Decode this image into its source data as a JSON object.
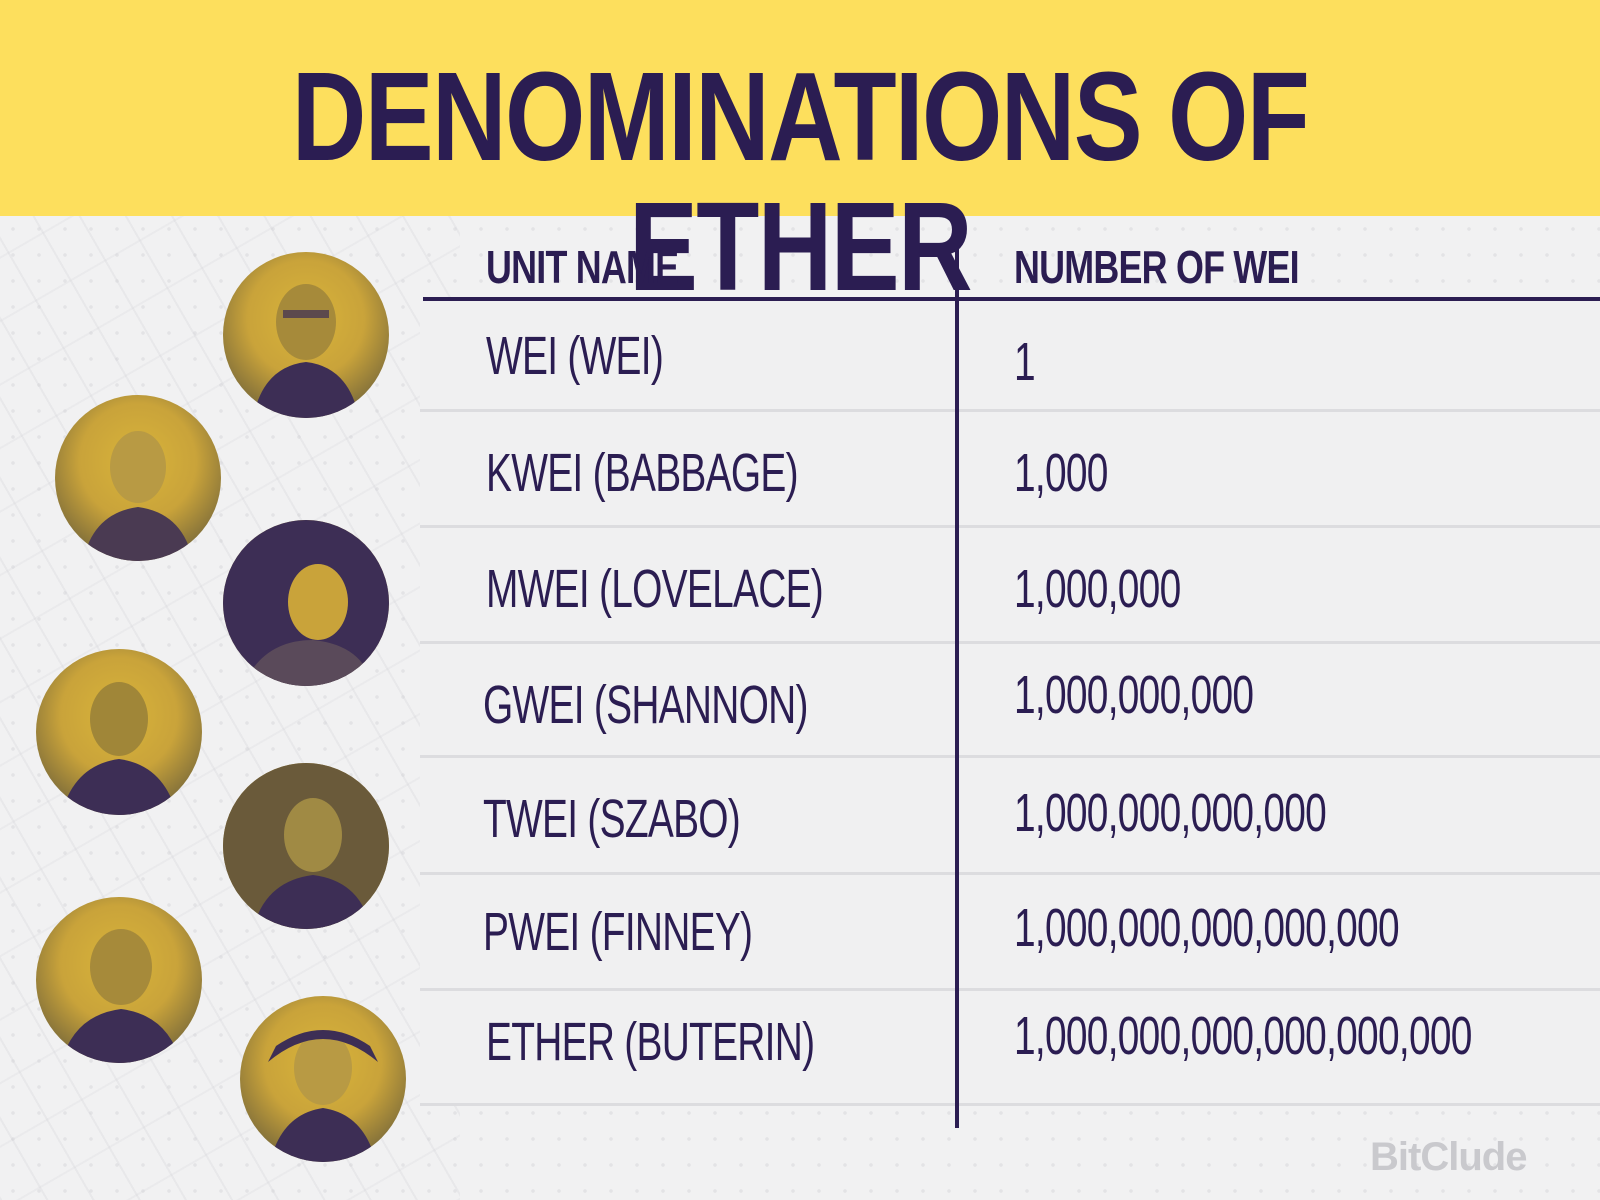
{
  "title": "DENOMINATIONS OF ETHER",
  "table": {
    "headers": [
      "UNIT NAME",
      "NUMBER OF WEI"
    ],
    "rows": [
      {
        "unit": "WEI (WEI)",
        "wei": "1"
      },
      {
        "unit": "KWEI (BABBAGE)",
        "wei": "1,000"
      },
      {
        "unit": "MWEI (LOVELACE)",
        "wei": "1,000,000"
      },
      {
        "unit": "GWEI (SHANNON)",
        "wei": "1,000,000,000"
      },
      {
        "unit": "TWEI (SZABO)",
        "wei": "1,000,000,000,000"
      },
      {
        "unit": "PWEI (FINNEY)",
        "wei": "1,000,000,000,000,000"
      },
      {
        "unit": "ETHER (BUTERIN)",
        "wei": "1,000,000,000,000,000,000"
      }
    ]
  },
  "portraits": [
    "wei-dai-portrait",
    "charles-babbage-portrait",
    "ada-lovelace-portrait",
    "claude-shannon-portrait",
    "nick-szabo-portrait",
    "hal-finney-portrait",
    "vitalik-buterin-portrait"
  ],
  "brand": "BitClude",
  "colors": {
    "header_bg": "#fddf5d",
    "text": "#2b1d52",
    "row_bg": "#f0f0f1"
  }
}
